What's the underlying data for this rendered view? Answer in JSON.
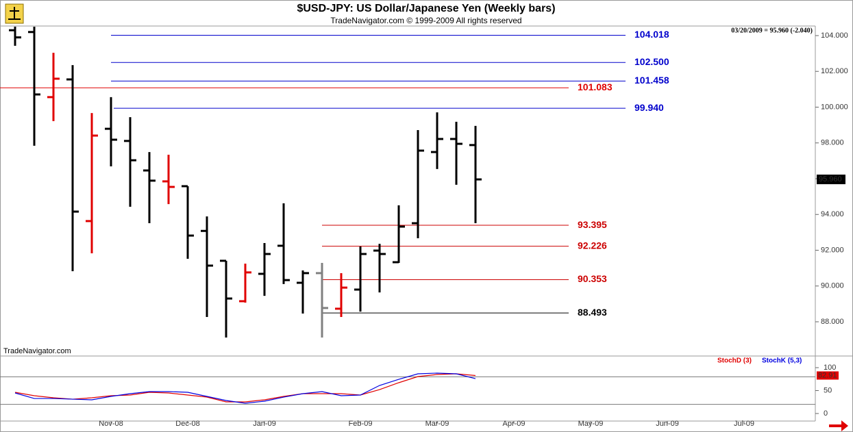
{
  "chart_data": [
    {
      "type": "ohlc",
      "title": "$USD-JPY:  US Dollar/Japanese Yen  (Weekly bars)",
      "subtitle": "TradeNavigator.com © 1999-2009 All rights reserved",
      "info": "03/20/2009 = 95.960 (-2.040)",
      "watermark": "TradeNavigator.com",
      "x": [
        0,
        1,
        2,
        3,
        4,
        5,
        6,
        7,
        8,
        9,
        10,
        11,
        12,
        13,
        14,
        15,
        16,
        17,
        18,
        19,
        20,
        21,
        22,
        23,
        24
      ],
      "open": [
        104.3,
        104.2,
        100.56,
        101.55,
        93.63,
        98.79,
        98.11,
        96.46,
        95.85,
        95.58,
        93.08,
        91.41,
        89.15,
        90.68,
        92.25,
        90.18,
        90.72,
        88.73,
        89.8,
        91.98,
        91.33,
        93.51,
        97.49,
        98.22,
        97.88
      ],
      "high": [
        104.5,
        104.5,
        103.04,
        102.35,
        99.67,
        100.56,
        99.44,
        97.49,
        97.34,
        95.58,
        93.89,
        91.41,
        91.25,
        92.4,
        94.62,
        90.87,
        91.29,
        90.72,
        92.21,
        92.36,
        94.51,
        98.72,
        99.71,
        99.18,
        98.95
      ],
      "low": [
        103.43,
        97.84,
        99.22,
        90.83,
        91.83,
        96.69,
        94.43,
        93.51,
        94.58,
        91.52,
        88.27,
        87.12,
        89.07,
        89.45,
        90.11,
        88.46,
        87.12,
        88.27,
        88.57,
        89.64,
        91.29,
        92.67,
        96.54,
        95.66,
        93.51
      ],
      "close": [
        103.9,
        100.71,
        101.59,
        94.16,
        98.41,
        98.18,
        97.03,
        95.89,
        95.54,
        92.82,
        91.14,
        89.3,
        90.76,
        91.79,
        90.33,
        90.72,
        88.77,
        89.91,
        91.79,
        91.79,
        93.32,
        97.57,
        98.22,
        97.95,
        95.96
      ],
      "colors": [
        "#000000",
        "#000000",
        "#e00000",
        "#000000",
        "#e00000",
        "#000000",
        "#000000",
        "#000000",
        "#e00000",
        "#000000",
        "#000000",
        "#000000",
        "#e00000",
        "#000000",
        "#000000",
        "#000000",
        "#808080",
        "#e00000",
        "#000000",
        "#000000",
        "#000000",
        "#000000",
        "#000000",
        "#000000",
        "#000000"
      ],
      "last_label": {
        "value": 95.96,
        "label": "95.960"
      },
      "levels": [
        104.018,
        102.5,
        101.458,
        101.083,
        99.94,
        93.395,
        92.226,
        90.353,
        88.493
      ],
      "level_labels": [
        "104.018",
        "102.500",
        "101.458",
        "101.083",
        "99.940",
        "93.395",
        "92.226",
        "90.353",
        "88.493"
      ],
      "level_colors": [
        "#0000cc",
        "#0000cc",
        "#0000cc",
        "#e00000",
        "#0000cc",
        "#cc0000",
        "#cc0000",
        "#cc0000",
        "#000000"
      ],
      "xlim": [
        -0.786,
        41.714
      ],
      "ylim": [
        86.086,
        104.536
      ],
      "yticks": [
        {
          "value": 88,
          "label": "88.000"
        },
        {
          "value": 90,
          "label": "90.000"
        },
        {
          "value": 92,
          "label": "92.000"
        },
        {
          "value": 94,
          "label": "94.000"
        },
        {
          "value": 96,
          "label": "96.000"
        },
        {
          "value": 98,
          "label": "98.000"
        },
        {
          "value": 100,
          "label": "100.000"
        },
        {
          "value": 102,
          "label": "102.000"
        },
        {
          "value": 104,
          "label": "104.000"
        }
      ]
    },
    {
      "type": "line",
      "x": [
        0,
        1,
        2,
        3,
        4,
        5,
        6,
        7,
        8,
        9,
        10,
        11,
        12,
        13,
        14,
        15,
        16,
        17,
        18,
        19,
        20,
        21,
        22,
        23,
        24
      ],
      "series": [
        {
          "name": "StochD (3)",
          "color": "#e00000",
          "values": [
            46.3,
            38.8,
            34.3,
            31.3,
            34.3,
            38.8,
            40.3,
            46.3,
            44.8,
            40.3,
            35.8,
            25.4,
            25.4,
            29.9,
            37.3,
            43.3,
            43.3,
            43.3,
            40.3,
            52.2,
            67.2,
            80.6,
            85.1,
            86.6,
            82.91
          ],
          "last_value_label": "82.91"
        },
        {
          "name": "StochK (5,3)",
          "color": "#0000e0",
          "values": [
            44.8,
            32.8,
            32.8,
            31.3,
            29.9,
            37.3,
            43.3,
            47.8,
            47.8,
            46.3,
            37.3,
            28.4,
            22.4,
            26.9,
            35.8,
            43.3,
            47.8,
            38.8,
            40.3,
            61.2,
            74.6,
            86.6,
            88.1,
            86.6,
            76.1
          ]
        }
      ],
      "levels": [
        80,
        20
      ],
      "xlim": [
        -0.786,
        41.714
      ],
      "ylim": [
        -16.4,
        125.4
      ],
      "yticks": [
        0,
        50,
        100
      ],
      "xticks": [
        {
          "value": 5,
          "label": "Nov-08"
        },
        {
          "value": 9,
          "label": "Dec-08"
        },
        {
          "value": 13,
          "label": "Jan-09"
        },
        {
          "value": 18,
          "label": "Feb-09"
        },
        {
          "value": 22,
          "label": "Mar-09"
        },
        {
          "value": 26,
          "label": "Apr-09"
        },
        {
          "value": 30,
          "label": "May-09"
        },
        {
          "value": 34,
          "label": "Jun-09"
        },
        {
          "value": 38,
          "label": "Jul-09"
        }
      ]
    }
  ]
}
